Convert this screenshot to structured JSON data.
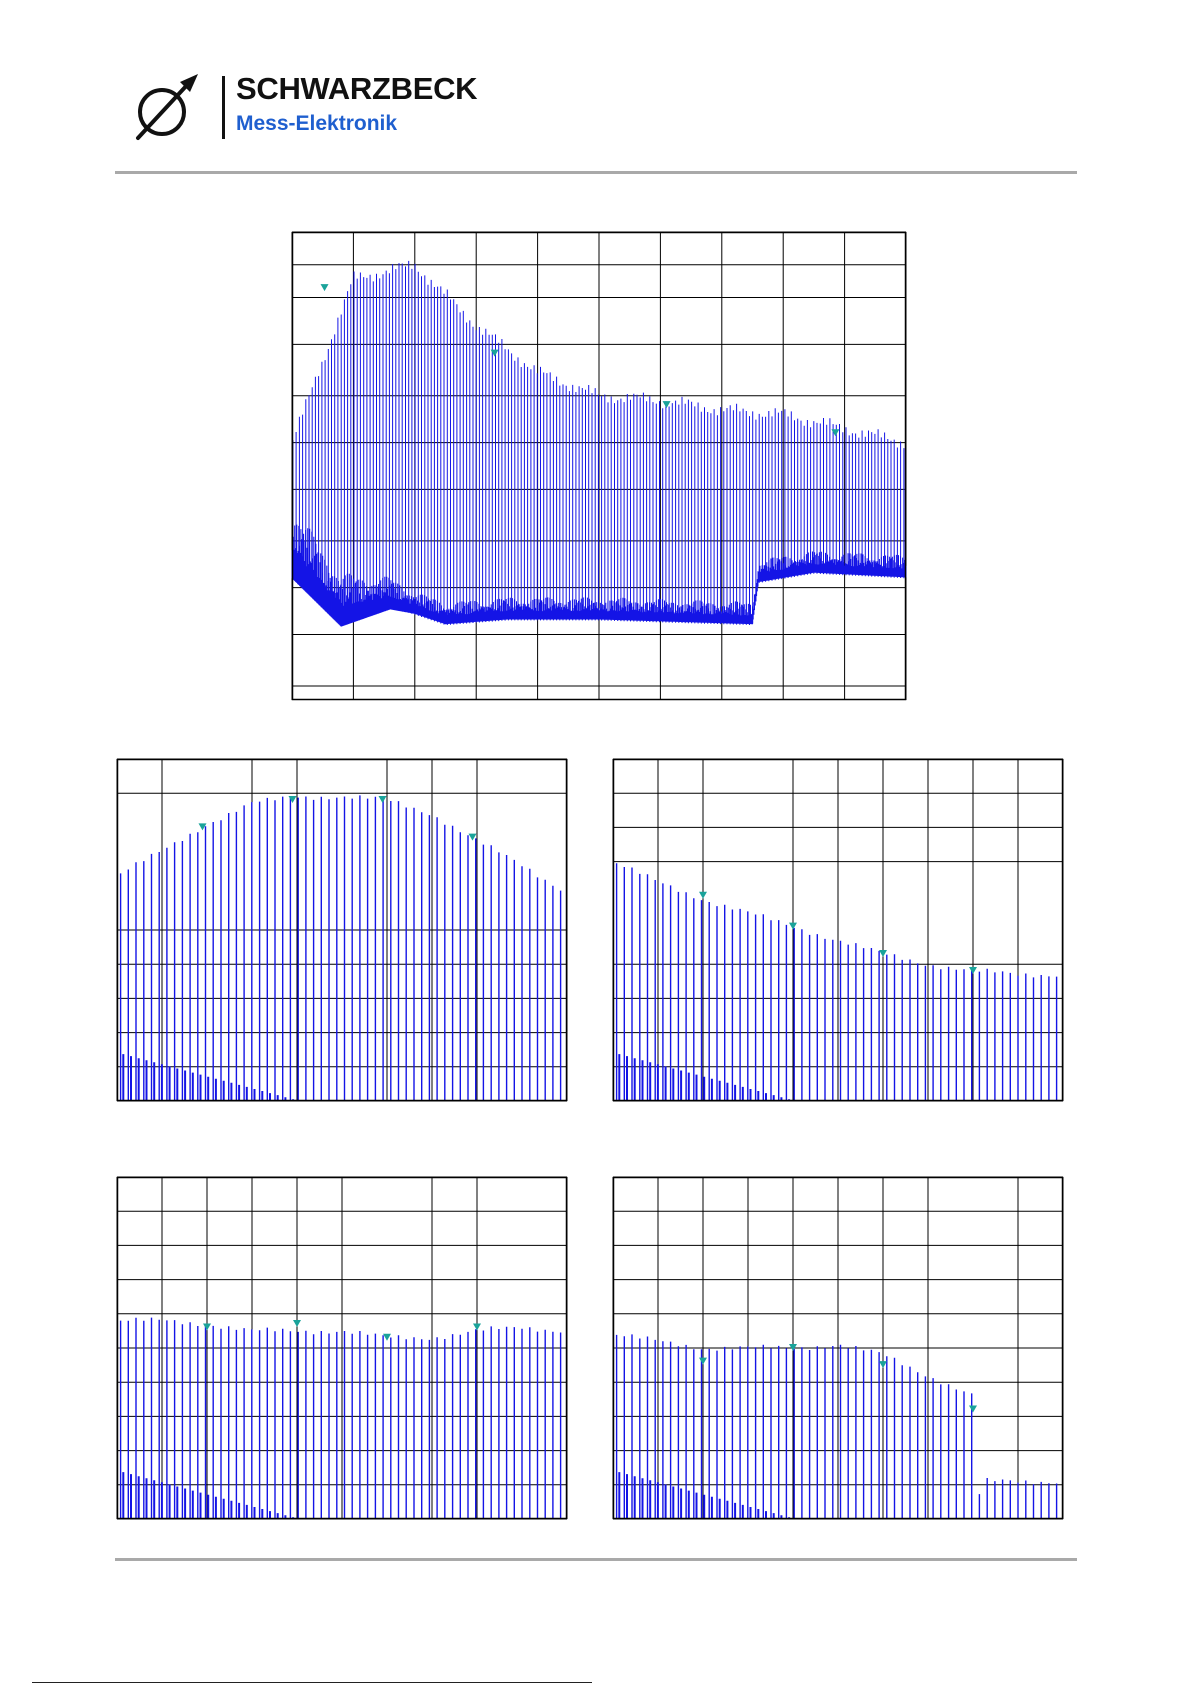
{
  "header": {
    "brand_name": "SCHWARZBECK",
    "brand_subtitle": "Mess-Elektronik",
    "logo_icon": "diameter-arrow-icon",
    "colors": {
      "brand_black": "#111111",
      "brand_blue": "#1f5fcf"
    }
  },
  "colors": {
    "trace": "#1414e6",
    "marker": "#1aa39a",
    "grid": "#000000",
    "frame": "#000000",
    "rule": "#a9a9a9"
  },
  "chart_data": [
    {
      "id": "main",
      "type": "line",
      "title": "",
      "xlabel": "",
      "ylabel": "",
      "grid": true,
      "xlim": [
        0,
        100
      ],
      "ylim": [
        0,
        100
      ],
      "x_gridlines": [
        0,
        10,
        20,
        30,
        40,
        50,
        60,
        70,
        80,
        90,
        100
      ],
      "y_gridlines": [
        3,
        14,
        24,
        34,
        45,
        55,
        65,
        76,
        86,
        93,
        100
      ],
      "series": [
        {
          "name": "",
          "peak_x": [
            0,
            10,
            20,
            30,
            40,
            50,
            60,
            70,
            80,
            90,
            100
          ],
          "peak_y": [
            55,
            90,
            93,
            80,
            70,
            65,
            64,
            62,
            61,
            58,
            55
          ],
          "noise_x": [
            0,
            8,
            16,
            25,
            35,
            50,
            75,
            76,
            85,
            100
          ],
          "noise_y": [
            32,
            20,
            22,
            18,
            19,
            19,
            18,
            27,
            29,
            28
          ]
        }
      ],
      "markers": [
        [
          5.3,
          88
        ],
        [
          33,
          74
        ],
        [
          61,
          63
        ],
        [
          88.5,
          57
        ]
      ]
    },
    {
      "id": "panel-1",
      "type": "line",
      "title": "",
      "xlabel": "",
      "ylabel": "",
      "grid": true,
      "xlim": [
        0,
        100
      ],
      "ylim": [
        0,
        100
      ],
      "x_gridlines": [
        0,
        10,
        30,
        40,
        60,
        70,
        80,
        100
      ],
      "y_gridlines": [
        0,
        10,
        20,
        30,
        40,
        50,
        90,
        100
      ],
      "series": [
        {
          "name": "",
          "peak_x": [
            0,
            10,
            20,
            30,
            40,
            50,
            60,
            70,
            80,
            90,
            100
          ],
          "peak_y": [
            66,
            73,
            81,
            87,
            89,
            89,
            88,
            84,
            76,
            69,
            61
          ]
        }
      ],
      "markers": [
        [
          19,
          80
        ],
        [
          39,
          88
        ],
        [
          59,
          88
        ],
        [
          79,
          77
        ]
      ]
    },
    {
      "id": "panel-2",
      "type": "line",
      "title": "",
      "xlabel": "",
      "ylabel": "",
      "grid": true,
      "xlim": [
        0,
        100
      ],
      "ylim": [
        0,
        100
      ],
      "x_gridlines": [
        0,
        10,
        20,
        40,
        50,
        60,
        70,
        80,
        90,
        100
      ],
      "y_gridlines": [
        0,
        10,
        20,
        30,
        40,
        70,
        80,
        90,
        100
      ],
      "series": [
        {
          "name": "",
          "peak_x": [
            0,
            10,
            20,
            30,
            40,
            50,
            60,
            70,
            80,
            90,
            100
          ],
          "peak_y": [
            70,
            64,
            59,
            55,
            51,
            47,
            43,
            40,
            38,
            37,
            37
          ]
        }
      ],
      "markers": [
        [
          20,
          60
        ],
        [
          40,
          51
        ],
        [
          60,
          43
        ],
        [
          80,
          38
        ]
      ]
    },
    {
      "id": "panel-3",
      "type": "line",
      "title": "",
      "xlabel": "",
      "ylabel": "",
      "grid": true,
      "xlim": [
        0,
        100
      ],
      "ylim": [
        0,
        100
      ],
      "x_gridlines": [
        0,
        10,
        20,
        30,
        40,
        50,
        70,
        80,
        100
      ],
      "y_gridlines": [
        0,
        10,
        20,
        30,
        40,
        50,
        60,
        70,
        80,
        90,
        100
      ],
      "series": [
        {
          "name": "",
          "peak_x": [
            0,
            10,
            20,
            30,
            40,
            50,
            60,
            70,
            80,
            90,
            100
          ],
          "peak_y": [
            58,
            58,
            57,
            55,
            55,
            55,
            53,
            53,
            55,
            56,
            55
          ]
        }
      ],
      "markers": [
        [
          20,
          56
        ],
        [
          40,
          57
        ],
        [
          60,
          53
        ],
        [
          80,
          56
        ]
      ]
    },
    {
      "id": "panel-4",
      "type": "line",
      "title": "",
      "xlabel": "",
      "ylabel": "",
      "grid": true,
      "xlim": [
        0,
        100
      ],
      "ylim": [
        0,
        100
      ],
      "x_gridlines": [
        0,
        10,
        20,
        30,
        40,
        50,
        60,
        70,
        90,
        100
      ],
      "y_gridlines": [
        0,
        10,
        20,
        30,
        40,
        50,
        60,
        70,
        80,
        90,
        100
      ],
      "series": [
        {
          "name": "",
          "peak_x": [
            0,
            10,
            20,
            30,
            40,
            50,
            60,
            70,
            80,
            80.3,
            82
          ],
          "peak_y": [
            54,
            52,
            50,
            50,
            50,
            51,
            48,
            42,
            36,
            0,
            11
          ]
        }
      ],
      "markers": [
        [
          20,
          46
        ],
        [
          40,
          50
        ],
        [
          60,
          45
        ],
        [
          80,
          32
        ]
      ]
    }
  ]
}
